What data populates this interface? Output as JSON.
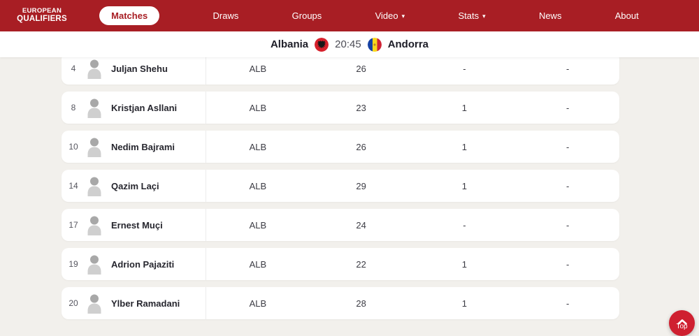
{
  "nav": {
    "logo_line1": "EUROPEAN",
    "logo_line2": "QUALIFIERS",
    "items": [
      {
        "label": "Matches",
        "active": true,
        "has_caret": false
      },
      {
        "label": "Draws",
        "active": false,
        "has_caret": false
      },
      {
        "label": "Groups",
        "active": false,
        "has_caret": false
      },
      {
        "label": "Video",
        "active": false,
        "has_caret": true
      },
      {
        "label": "Stats",
        "active": false,
        "has_caret": true
      },
      {
        "label": "News",
        "active": false,
        "has_caret": false
      },
      {
        "label": "About",
        "active": false,
        "has_caret": false
      }
    ]
  },
  "match_header": {
    "home_team": "Albania",
    "kickoff_time": "20:45",
    "away_team": "Andorra"
  },
  "player_table": {
    "rows": [
      {
        "shirt_number": "4",
        "name": "Juljan Shehu",
        "team": "ALB",
        "stat1": "26",
        "stat2": "-",
        "stat3": "-"
      },
      {
        "shirt_number": "8",
        "name": "Kristjan Asllani",
        "team": "ALB",
        "stat1": "23",
        "stat2": "1",
        "stat3": "-"
      },
      {
        "shirt_number": "10",
        "name": "Nedim Bajrami",
        "team": "ALB",
        "stat1": "26",
        "stat2": "1",
        "stat3": "-"
      },
      {
        "shirt_number": "14",
        "name": "Qazim Laçi",
        "team": "ALB",
        "stat1": "29",
        "stat2": "1",
        "stat3": "-"
      },
      {
        "shirt_number": "17",
        "name": "Ernest Muçi",
        "team": "ALB",
        "stat1": "24",
        "stat2": "-",
        "stat3": "-"
      },
      {
        "shirt_number": "19",
        "name": "Adrion Pajaziti",
        "team": "ALB",
        "stat1": "22",
        "stat2": "1",
        "stat3": "-"
      },
      {
        "shirt_number": "20",
        "name": "Ylber Ramadani",
        "team": "ALB",
        "stat1": "28",
        "stat2": "1",
        "stat3": "-"
      }
    ]
  },
  "back_to_top": {
    "label": "Top"
  },
  "icons": {
    "caret_down": "▾",
    "back_to_top_chevron": "chevron-up",
    "player_avatar": "person-silhouette",
    "home_flag": "albania-flag",
    "away_flag": "andorra-flag"
  },
  "colors": {
    "nav_red": "#a81e24",
    "top_button_red": "#cf2030",
    "page_background": "#f2f0ec",
    "card_background": "#ffffff",
    "divider": "#ececec",
    "text_dark": "#26262e",
    "text_gray": "#4c4c55",
    "albania_flag_red": "#d6202b",
    "andorra_blue": "#1641a3",
    "andorra_yellow": "#f8d81c",
    "andorra_red": "#cf2335"
  }
}
